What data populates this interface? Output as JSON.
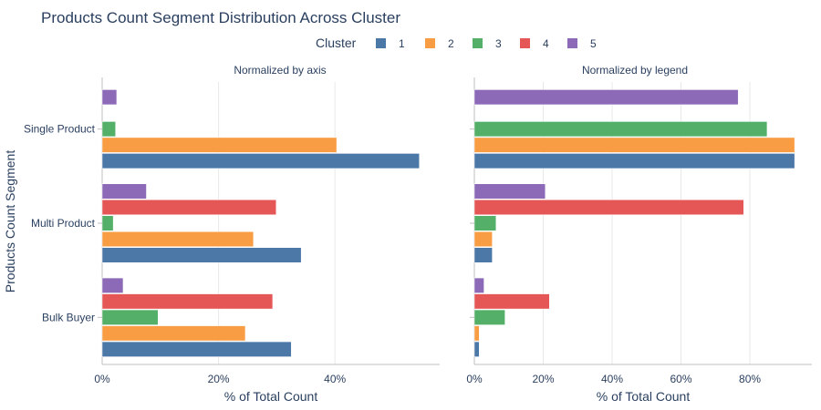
{
  "chart_data": {
    "type": "bar",
    "orientation": "horizontal",
    "title": "Products Count Segment Distribution Across Cluster",
    "legend": {
      "title": "Cluster",
      "placement": "top-center",
      "entries": [
        "1",
        "2",
        "3",
        "4",
        "5"
      ]
    },
    "colors": {
      "1": "#4c78a8",
      "2": "#f99d45",
      "3": "#54b069",
      "4": "#e45756",
      "5": "#8d6ab8",
      "grid": "#e8e8e8",
      "axis_line": "#bfbfbf",
      "text": "#2a3f5f"
    },
    "ylabel": "Products Count Segment",
    "categories": [
      "Single Product",
      "Multi Product",
      "Bulk Buyer"
    ],
    "subplots": [
      {
        "subtitle": "Normalized by axis",
        "xlabel": "% of Total Count",
        "xlim": [
          0,
          58
        ],
        "xticks": [
          0,
          20,
          40
        ],
        "xtick_labels": [
          "0%",
          "20%",
          "40%"
        ],
        "series": [
          {
            "name": "1",
            "values": [
              54.5,
              34.2,
              32.5
            ]
          },
          {
            "name": "2",
            "values": [
              40.3,
              26.0,
              24.6
            ]
          },
          {
            "name": "3",
            "values": [
              2.3,
              1.9,
              9.6
            ]
          },
          {
            "name": "4",
            "values": [
              null,
              29.9,
              29.3
            ]
          },
          {
            "name": "5",
            "values": [
              2.5,
              7.6,
              3.6
            ]
          }
        ]
      },
      {
        "subtitle": "Normalized by legend",
        "xlabel": "% of Total Count",
        "xlim": [
          0,
          98
        ],
        "xticks": [
          0,
          20,
          40,
          60,
          80
        ],
        "xtick_labels": [
          "0%",
          "20%",
          "40%",
          "60%",
          "80%"
        ],
        "series": [
          {
            "name": "1",
            "values": [
              93.0,
              5.2,
              1.4
            ]
          },
          {
            "name": "2",
            "values": [
              93.0,
              5.2,
              1.4
            ]
          },
          {
            "name": "3",
            "values": [
              85.0,
              6.3,
              8.9
            ]
          },
          {
            "name": "4",
            "values": [
              null,
              78.2,
              21.8
            ]
          },
          {
            "name": "5",
            "values": [
              76.6,
              20.6,
              2.8
            ]
          }
        ]
      }
    ]
  }
}
